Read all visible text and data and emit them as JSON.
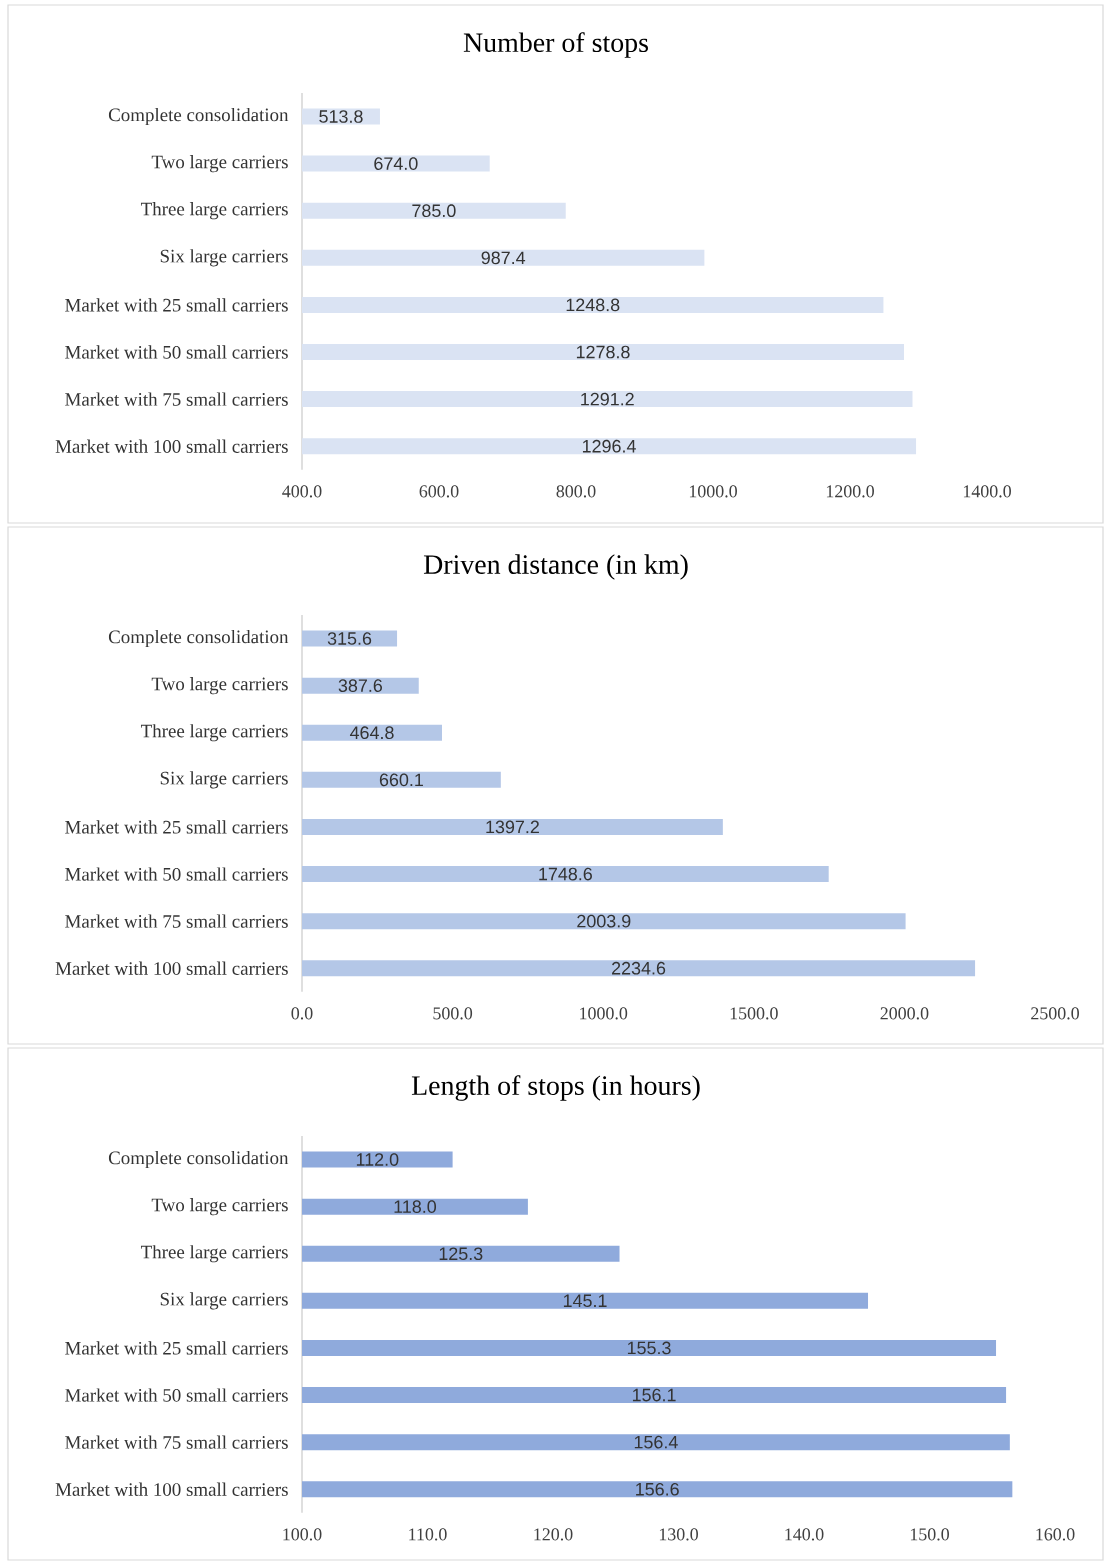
{
  "chart_data": [
    {
      "type": "bar",
      "orientation": "horizontal",
      "title": "Number of stops",
      "categories": [
        "Complete consolidation",
        "Two large carriers",
        "Three large carriers",
        "Six large carriers",
        "Market with 25 small carriers",
        "Market with 50 small carriers",
        "Market with 75 small carriers",
        "Market with 100 small carriers"
      ],
      "values": [
        513.8,
        674.0,
        785.0,
        987.4,
        1248.8,
        1278.8,
        1291.2,
        1296.4
      ],
      "value_labels": [
        "513.8",
        "674.0",
        "785.0",
        "987.4",
        "1248.8",
        "1278.8",
        "1291.2",
        "1296.4"
      ],
      "color": "#dae3f3",
      "xlim": [
        400,
        1400
      ],
      "xticks": [
        {
          "value": 400,
          "label": "400.0"
        },
        {
          "value": 600,
          "label": "600.0"
        },
        {
          "value": 800,
          "label": "800.0"
        },
        {
          "value": 1000,
          "label": "1000.0"
        },
        {
          "value": 1200,
          "label": "1200.0"
        },
        {
          "value": 1400,
          "label": "1400.0"
        }
      ]
    },
    {
      "type": "bar",
      "orientation": "horizontal",
      "title": "Driven distance (in km)",
      "categories": [
        "Complete consolidation",
        "Two large carriers",
        "Three large carriers",
        "Six large carriers",
        "Market with 25 small carriers",
        "Market with 50 small carriers",
        "Market with 75 small carriers",
        "Market with 100 small carriers"
      ],
      "values": [
        315.6,
        387.6,
        464.8,
        660.1,
        1397.2,
        1748.6,
        2003.9,
        2234.6
      ],
      "value_labels": [
        "315.6",
        "387.6",
        "464.8",
        "660.1",
        "1397.2",
        "1748.6",
        "2003.9",
        "2234.6"
      ],
      "color": "#b4c7e7",
      "xlim": [
        0,
        2500
      ],
      "xticks": [
        {
          "value": 0,
          "label": "0.0"
        },
        {
          "value": 500,
          "label": "500.0"
        },
        {
          "value": 1000,
          "label": "1000.0"
        },
        {
          "value": 1500,
          "label": "1500.0"
        },
        {
          "value": 2000,
          "label": "2000.0"
        },
        {
          "value": 2500,
          "label": "2500.0"
        }
      ]
    },
    {
      "type": "bar",
      "orientation": "horizontal",
      "title": "Length of stops (in hours)",
      "categories": [
        "Complete consolidation",
        "Two large carriers",
        "Three large carriers",
        "Six large carriers",
        "Market with 25 small carriers",
        "Market with 50 small carriers",
        "Market with 75 small carriers",
        "Market with 100 small carriers"
      ],
      "values": [
        112.0,
        118.0,
        125.3,
        145.1,
        155.3,
        156.1,
        156.4,
        156.6
      ],
      "value_labels": [
        "112.0",
        "118.0",
        "125.3",
        "145.1",
        "155.3",
        "156.1",
        "156.4",
        "156.6"
      ],
      "color": "#8faadc",
      "xlim": [
        100,
        160
      ],
      "xticks": [
        {
          "value": 100,
          "label": "100.0"
        },
        {
          "value": 110,
          "label": "110.0"
        },
        {
          "value": 120,
          "label": "120.0"
        },
        {
          "value": 130,
          "label": "130.0"
        },
        {
          "value": 140,
          "label": "140.0"
        },
        {
          "value": 150,
          "label": "150.0"
        },
        {
          "value": 160,
          "label": "160.0"
        }
      ]
    }
  ]
}
